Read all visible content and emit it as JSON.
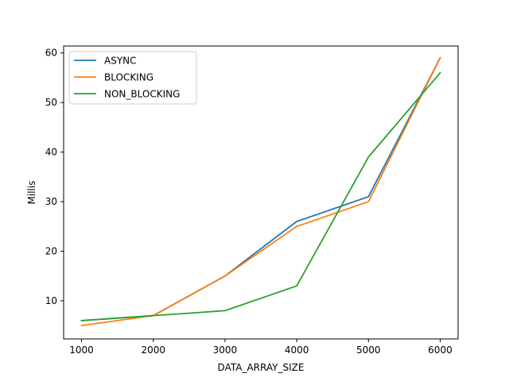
{
  "chart_data": {
    "type": "line",
    "title": "",
    "xlabel": "DATA_ARRAY_SIZE",
    "ylabel": "Millis",
    "xlim": [
      750,
      6250
    ],
    "ylim": [
      2.3,
      61.4
    ],
    "xticks": [
      1000,
      2000,
      3000,
      4000,
      5000,
      6000
    ],
    "yticks": [
      10,
      20,
      30,
      40,
      50,
      60
    ],
    "grid": false,
    "legend_position": "upper-left",
    "x": [
      1000,
      2000,
      3000,
      4000,
      5000,
      6000
    ],
    "series": [
      {
        "name": "ASYNC",
        "color": "#1f77b4",
        "values": [
          6,
          7,
          15,
          26,
          31,
          59
        ]
      },
      {
        "name": "BLOCKING",
        "color": "#ff7f0e",
        "values": [
          5,
          7,
          15,
          25,
          30,
          59
        ]
      },
      {
        "name": "NON_BLOCKING",
        "color": "#2ca02c",
        "values": [
          6,
          7,
          8,
          13,
          39,
          56
        ]
      }
    ]
  }
}
